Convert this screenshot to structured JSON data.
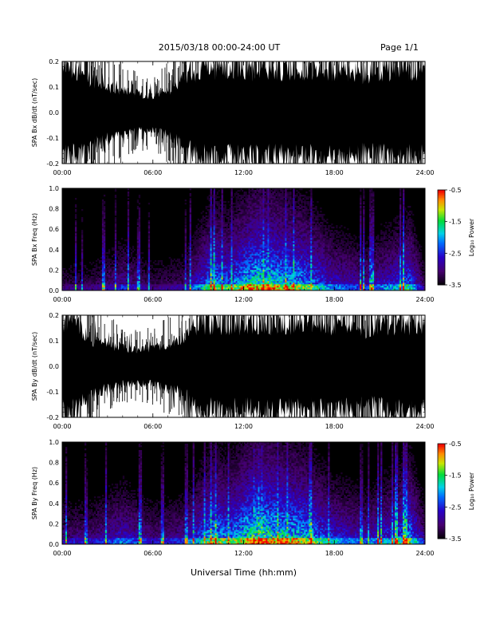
{
  "header": {
    "title": "2015/03/18  00:00-24:00 UT",
    "page": "Page 1/1"
  },
  "chart_data": [
    {
      "type": "line",
      "ylabel": "SPA Bx dB/dt (nT/sec)",
      "xlim": [
        0,
        24
      ],
      "ylim": [
        -0.2,
        0.2
      ],
      "yticks": [
        "-0.2",
        "-0.1",
        "0.0",
        "0.1",
        "0.2"
      ],
      "xticks": [
        "00:00",
        "06:00",
        "12:00",
        "18:00",
        "24:00"
      ],
      "envelope_hours": [
        0,
        1,
        2,
        3,
        4,
        5,
        6,
        7,
        8,
        9,
        10,
        11,
        12,
        13,
        14,
        15,
        16,
        17,
        18,
        19,
        20,
        21,
        22,
        23,
        24
      ],
      "envelope_amplitude": [
        0.2,
        0.2,
        0.15,
        0.12,
        0.1,
        0.08,
        0.07,
        0.1,
        0.15,
        0.2,
        0.2,
        0.2,
        0.2,
        0.2,
        0.2,
        0.2,
        0.2,
        0.2,
        0.2,
        0.2,
        0.18,
        0.2,
        0.2,
        0.2,
        0.2
      ]
    },
    {
      "type": "heatmap",
      "ylabel": "SPA Bx Freq (Hz)",
      "xlim": [
        0,
        24
      ],
      "ylim": [
        0,
        1.0
      ],
      "yticks": [
        "0.0",
        "0.2",
        "0.4",
        "0.6",
        "0.8",
        "1.0"
      ],
      "xticks": [
        "00:00",
        "06:00",
        "12:00",
        "18:00",
        "24:00"
      ],
      "colorbar": {
        "label": "Log₁₀ Power",
        "range": [
          -3.5,
          -0.5
        ],
        "ticks": [
          "-0.5",
          "-1.5",
          "-2.5",
          "-3.5"
        ]
      },
      "activity_hours": [
        0,
        2,
        4,
        6,
        8,
        10,
        11,
        12,
        13,
        14,
        16,
        18,
        20,
        22,
        23,
        24
      ],
      "activity_level": [
        0.2,
        0.2,
        0.35,
        0.2,
        0.25,
        0.7,
        0.6,
        0.75,
        0.85,
        0.8,
        0.7,
        0.45,
        0.35,
        0.5,
        0.6,
        0.2
      ]
    },
    {
      "type": "line",
      "ylabel": "SPA By dB/dt (nT/sec)",
      "xlim": [
        0,
        24
      ],
      "ylim": [
        -0.2,
        0.2
      ],
      "yticks": [
        "-0.2",
        "-0.1",
        "0.0",
        "0.1",
        "0.2"
      ],
      "xticks": [
        "00:00",
        "06:00",
        "12:00",
        "18:00",
        "24:00"
      ],
      "envelope_hours": [
        0,
        1,
        2,
        3,
        4,
        5,
        6,
        7,
        8,
        9,
        10,
        11,
        12,
        13,
        14,
        15,
        16,
        17,
        18,
        19,
        20,
        21,
        22,
        23,
        24
      ],
      "envelope_amplitude": [
        0.2,
        0.2,
        0.12,
        0.1,
        0.08,
        0.07,
        0.08,
        0.1,
        0.12,
        0.2,
        0.2,
        0.2,
        0.2,
        0.2,
        0.2,
        0.2,
        0.2,
        0.2,
        0.2,
        0.2,
        0.17,
        0.2,
        0.2,
        0.2,
        0.2
      ]
    },
    {
      "type": "heatmap",
      "ylabel": "SPA By Freq (Hz)",
      "xlim": [
        0,
        24
      ],
      "ylim": [
        0,
        1.0
      ],
      "yticks": [
        "0.0",
        "0.2",
        "0.4",
        "0.6",
        "0.8",
        "1.0"
      ],
      "xticks": [
        "00:00",
        "06:00",
        "12:00",
        "18:00",
        "24:00"
      ],
      "colorbar": {
        "label": "Log₁₀ Power",
        "range": [
          -3.5,
          -0.5
        ],
        "ticks": [
          "-0.5",
          "-1.5",
          "-2.5",
          "-3.5"
        ]
      },
      "activity_hours": [
        0,
        2,
        4,
        6,
        8,
        10,
        11,
        12,
        13,
        14,
        16,
        18,
        20,
        22,
        23,
        24
      ],
      "activity_level": [
        0.3,
        0.3,
        0.45,
        0.3,
        0.35,
        0.75,
        0.65,
        0.8,
        0.9,
        0.85,
        0.75,
        0.5,
        0.4,
        0.55,
        0.7,
        0.3
      ]
    }
  ],
  "xlabel": "Universal Time (hh:mm)"
}
